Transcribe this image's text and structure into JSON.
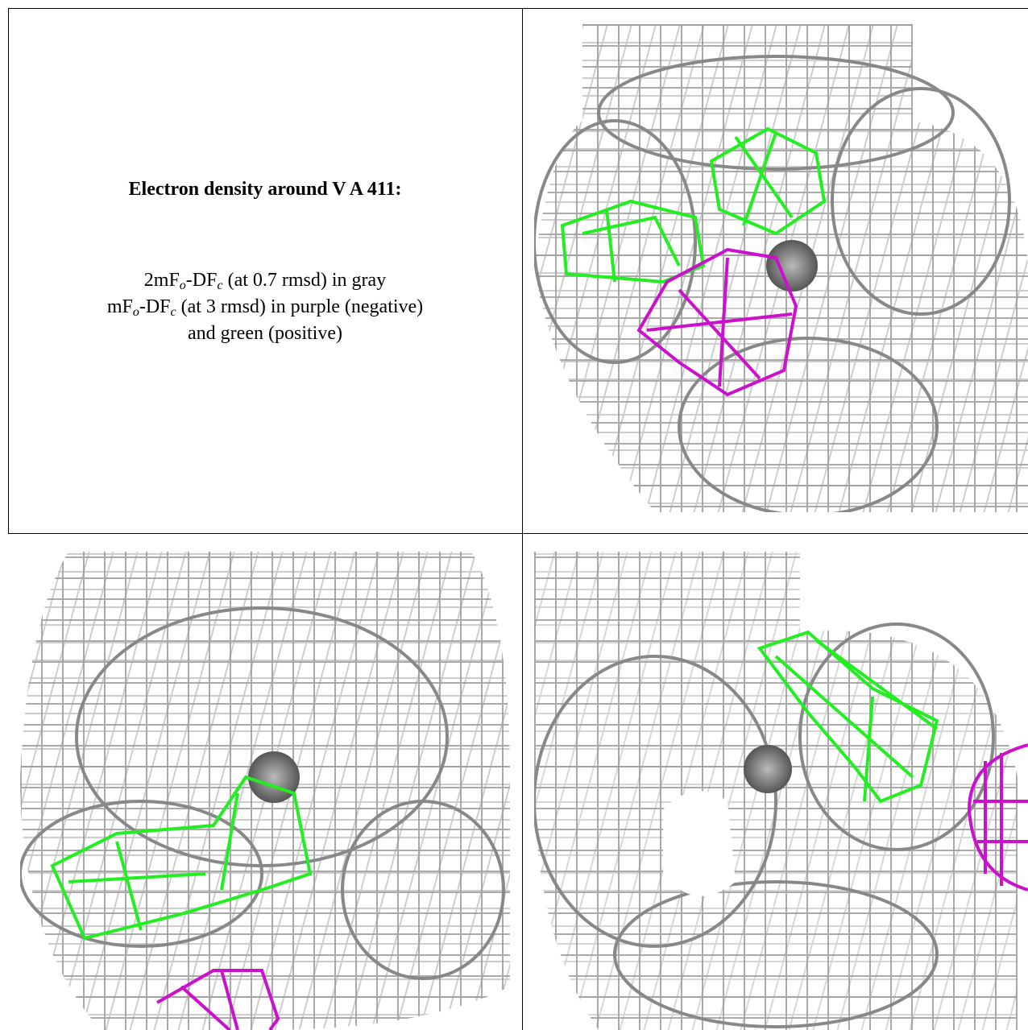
{
  "caption": {
    "title": "Electron density around V A 411:",
    "line1": [
      "2mF",
      "o",
      "-DF",
      "c",
      " (at 0.7 rmsd) in gray"
    ],
    "line2": [
      "mF",
      "o",
      "-DF",
      "c",
      " (at 3 rmsd) in purple (negative)"
    ],
    "line3": "and green (positive)"
  }
}
